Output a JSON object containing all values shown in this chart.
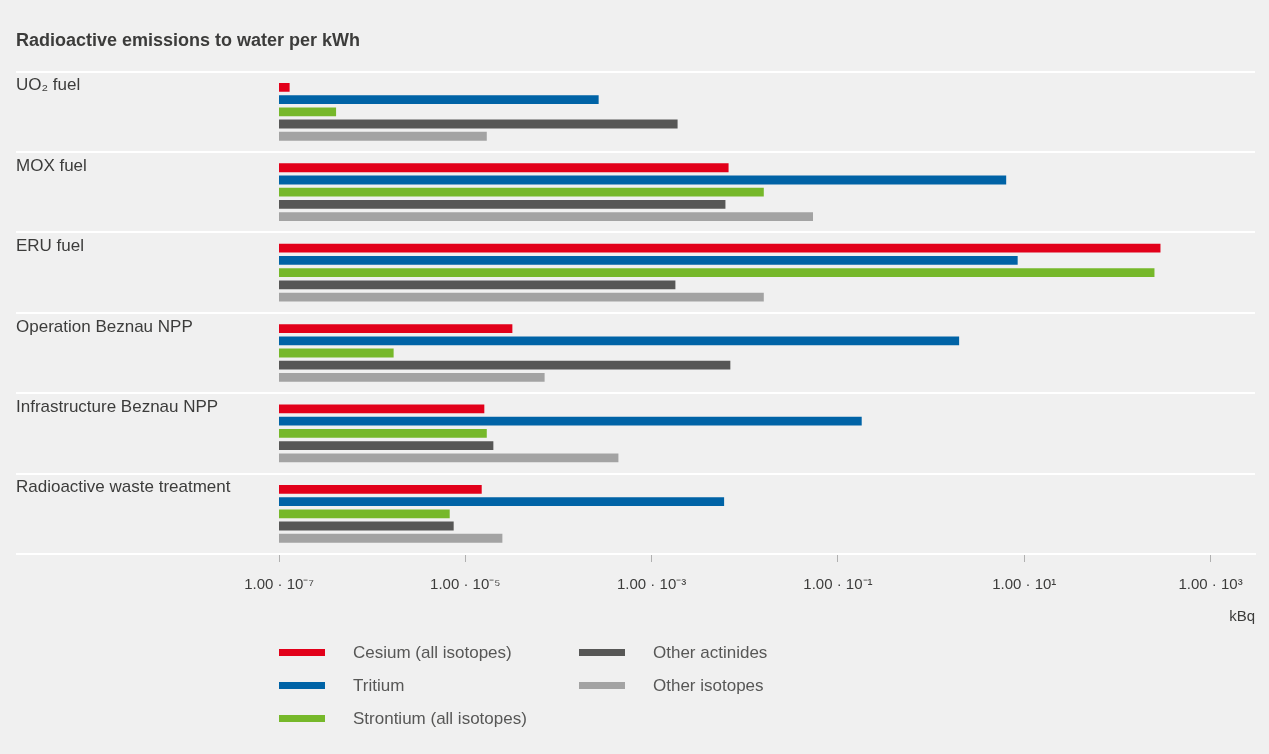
{
  "chart_data": {
    "type": "bar",
    "orientation": "horizontal",
    "title": "Radioactive emissions to water per kWh",
    "xlabel": "kBq",
    "categories": [
      "UO₂ fuel",
      "MOX fuel",
      "ERU fuel",
      "Operation Beznau NPP",
      "Infrastructure Beznau NPP",
      "Radioactive waste treatment"
    ],
    "series": [
      {
        "name": "Cesium (all isotopes)",
        "color": "#e2001a",
        "values": [
          1.3e-07,
          0.0067,
          290,
          3.2e-05,
          1.6e-05,
          1.5e-05
        ]
      },
      {
        "name": "Tritium",
        "color": "#0063a6",
        "values": [
          0.00027,
          6.4,
          8.5,
          2.0,
          0.18,
          0.006
        ]
      },
      {
        "name": "Strontium (all isotopes)",
        "color": "#76b82a",
        "values": [
          4.1e-07,
          0.016,
          250,
          1.7e-06,
          1.7e-05,
          6.8e-06
        ]
      },
      {
        "name": "Other actinides",
        "color": "#575756",
        "values": [
          0.0019,
          0.0062,
          0.0018,
          0.007,
          2e-05,
          7.5e-06
        ]
      },
      {
        "name": "Other isotopes",
        "color": "#a3a3a3",
        "values": [
          1.7e-05,
          0.054,
          0.016,
          7.1e-05,
          0.00044,
          2.5e-05
        ]
      }
    ],
    "log": "x",
    "xlim": [
      1e-07,
      3000
    ],
    "xticks": [
      {
        "value": 1e-07,
        "label": "1.00 · 10⁻⁷"
      },
      {
        "value": 1e-05,
        "label": "1.00 · 10⁻⁵"
      },
      {
        "value": 0.001,
        "label": "1.00 · 10⁻³"
      },
      {
        "value": 0.1,
        "label": "1.00 · 10⁻¹"
      },
      {
        "value": 10,
        "label": "1.00 · 10¹"
      },
      {
        "value": 1000,
        "label": "1.00 · 10³"
      }
    ],
    "grid": "y",
    "legend": "bottom"
  }
}
